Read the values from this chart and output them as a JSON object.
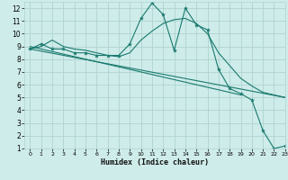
{
  "bg_color": "#ceecea",
  "grid_color": "#aed4d0",
  "line_color": "#1a7a6e",
  "xlabel": "Humidex (Indice chaleur)",
  "xlim": [
    -0.5,
    23
  ],
  "ylim": [
    1,
    12.5
  ],
  "xticks": [
    0,
    1,
    2,
    3,
    4,
    5,
    6,
    7,
    8,
    9,
    10,
    11,
    12,
    13,
    14,
    15,
    16,
    17,
    18,
    19,
    20,
    21,
    22,
    23
  ],
  "yticks": [
    1,
    2,
    3,
    4,
    5,
    6,
    7,
    8,
    9,
    10,
    11,
    12
  ],
  "series": [
    {
      "x": [
        0,
        1,
        2,
        3,
        4,
        5,
        6,
        7,
        8,
        9,
        10,
        11,
        12,
        13,
        14,
        15,
        16,
        17,
        18,
        19,
        20,
        21,
        22,
        23
      ],
      "y": [
        8.8,
        9.2,
        8.8,
        8.8,
        8.5,
        8.5,
        8.3,
        8.3,
        8.3,
        9.2,
        11.2,
        12.4,
        11.5,
        8.7,
        12.0,
        10.7,
        10.3,
        7.2,
        5.7,
        5.3,
        4.8,
        2.4,
        1.0,
        1.2
      ],
      "marker": true
    },
    {
      "x": [
        0,
        1,
        2,
        3,
        4,
        5,
        6,
        7,
        8,
        9,
        10,
        11,
        12,
        13,
        14,
        15,
        16,
        17,
        18,
        19,
        20,
        21,
        22,
        23
      ],
      "y": [
        8.8,
        9.0,
        9.5,
        9.0,
        8.8,
        8.7,
        8.5,
        8.3,
        8.2,
        8.5,
        9.5,
        10.2,
        10.8,
        11.1,
        11.2,
        10.8,
        10.0,
        8.5,
        7.5,
        6.5,
        5.9,
        5.4,
        5.2,
        5.0
      ],
      "marker": false
    },
    {
      "x": [
        0,
        19
      ],
      "y": [
        9.0,
        5.2
      ],
      "marker": false
    },
    {
      "x": [
        0,
        23
      ],
      "y": [
        8.8,
        5.0
      ],
      "marker": false
    }
  ]
}
